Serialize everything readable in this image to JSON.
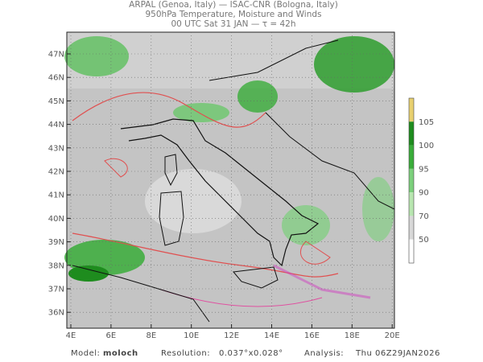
{
  "header": {
    "line1": "ARPAL (Genoa, Italy)  —  ISAC-CNR (Bologna, Italy)",
    "line2": "950hPa Temperature, Moisture and Winds",
    "line3": "00 UTC Sat 31 JAN  —  τ = 42h"
  },
  "map": {
    "lat_labels": [
      "47N",
      "46N",
      "45N",
      "44N",
      "43N",
      "42N",
      "41N",
      "40N",
      "39N",
      "38N",
      "37N",
      "36N"
    ],
    "lon_labels": [
      "4E",
      "6E",
      "8E",
      "10E",
      "12E",
      "14E",
      "16E",
      "18E",
      "20E"
    ]
  },
  "colorbar": {
    "labels": [
      "105",
      "100",
      "95",
      "90",
      "70",
      "50"
    ],
    "colors": [
      "#e8d070",
      "#1e8c1e",
      "#3aad3a",
      "#7cd07c",
      "#b8e6b0",
      "#d8d8d8",
      "#ffffff"
    ]
  },
  "footer": {
    "model_label": "Model:",
    "model": "moloch",
    "resolution_label": "Resolution:",
    "resolution": "0.037°x0.028°",
    "analysis_label": "Analysis:",
    "analysis": "Thu 06Z29JAN2026"
  }
}
